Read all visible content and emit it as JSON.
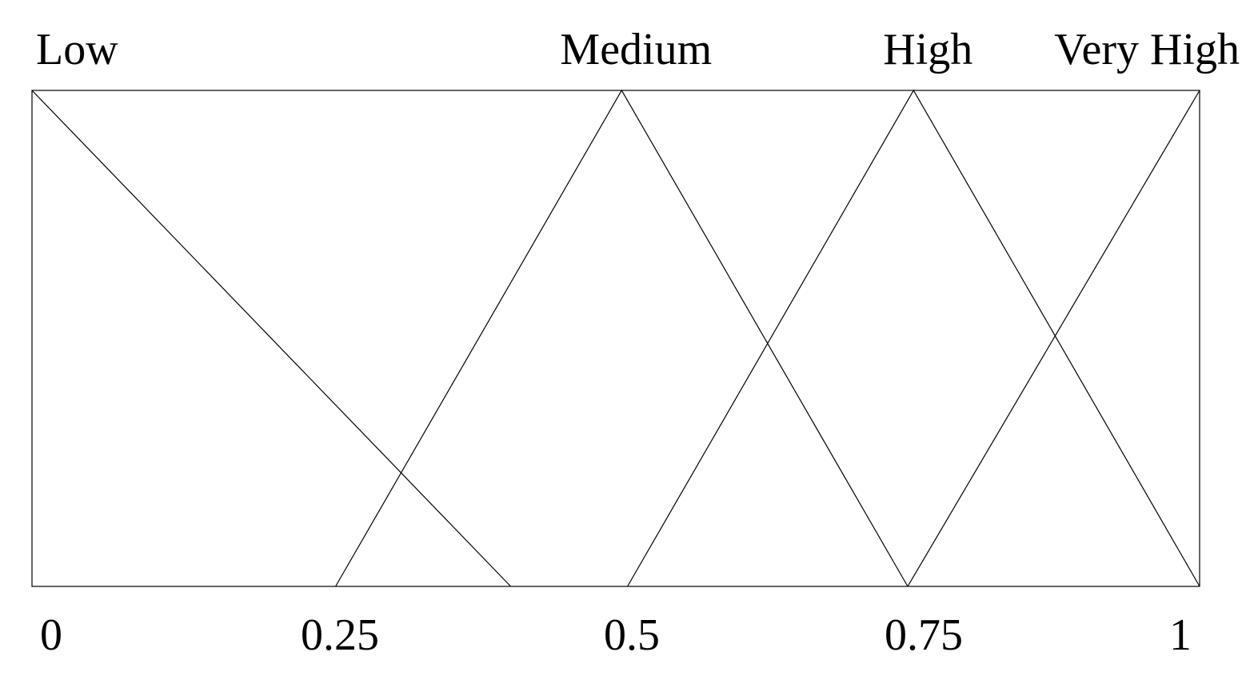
{
  "chart_data": {
    "type": "line",
    "xlim": [
      0,
      1
    ],
    "ylim": [
      0,
      1
    ],
    "xticks": [
      0,
      0.25,
      0.5,
      0.75,
      1
    ],
    "series": [
      {
        "name": "Low",
        "color": "#000000",
        "x": [
          0,
          0.41
        ],
        "values": [
          1,
          0
        ]
      },
      {
        "name": "Medium",
        "color": "#000000",
        "x": [
          0.26,
          0.505,
          0.75
        ],
        "values": [
          0,
          1,
          0
        ]
      },
      {
        "name": "High",
        "color": "#000000",
        "x": [
          0.51,
          0.755,
          1
        ],
        "values": [
          0,
          1,
          0
        ]
      },
      {
        "name": "Very High",
        "color": "#000000",
        "x": [
          0.75,
          1
        ],
        "values": [
          0,
          1
        ]
      }
    ]
  }
}
